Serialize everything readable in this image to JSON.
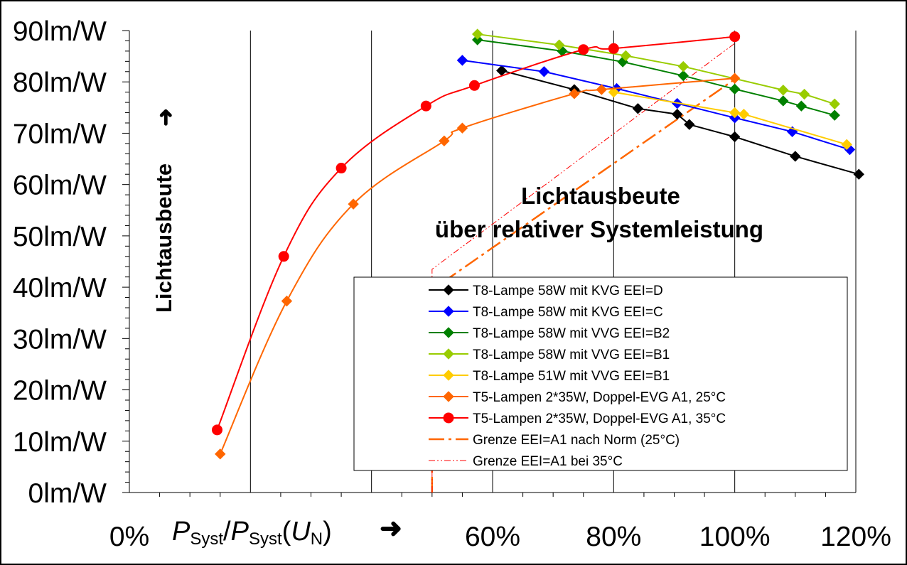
{
  "chart_data": {
    "type": "line",
    "title": "Lichtausbeute",
    "subtitle": "über relativer Systemleistung",
    "ylabel": "Lichtausbeute",
    "ylabel_arrow": "➜",
    "xlabel_parts": {
      "p1": "P",
      "s1": "Syst",
      "slash": "/",
      "p2": "P",
      "s2": "Syst",
      "open": "(",
      "u": "U",
      "n": "N",
      "close": ")"
    },
    "xlabel_arrow": "➜",
    "xlim": [
      0,
      120
    ],
    "ylim": [
      0,
      90
    ],
    "x_ticks": [
      {
        "v": 0,
        "label": "0%"
      },
      {
        "v": 60,
        "label": "60%"
      },
      {
        "v": 80,
        "label": "80%"
      },
      {
        "v": 100,
        "label": "100%"
      },
      {
        "v": 120,
        "label": "120%"
      }
    ],
    "y_ticks": [
      {
        "v": 0,
        "label": "0lm/W"
      },
      {
        "v": 10,
        "label": "10lm/W"
      },
      {
        "v": 20,
        "label": "20lm/W"
      },
      {
        "v": 30,
        "label": "30lm/W"
      },
      {
        "v": 40,
        "label": "40lm/W"
      },
      {
        "v": 50,
        "label": "50lm/W"
      },
      {
        "v": 60,
        "label": "60lm/W"
      },
      {
        "v": 70,
        "label": "70lm/W"
      },
      {
        "v": 80,
        "label": "80lm/W"
      },
      {
        "v": 90,
        "label": "90lm/W"
      }
    ],
    "grid": "vertical",
    "legend_position": "bottom-right",
    "series": [
      {
        "name": "T8-Lampe 58W mit KVG EEI=D",
        "color": "#000000",
        "marker": "diamond",
        "smooth": false,
        "x": [
          61.5,
          73.5,
          84,
          90.5,
          92.5,
          100,
          110,
          120.5
        ],
        "y": [
          82.2,
          78.5,
          74.8,
          73.7,
          71.7,
          69.3,
          65.5,
          62
        ]
      },
      {
        "name": "T8-Lampe 58W mit KVG EEI=C",
        "color": "#0000ff",
        "marker": "diamond",
        "smooth": false,
        "x": [
          55,
          68.5,
          80.5,
          90.5,
          100,
          109.5,
          119
        ],
        "y": [
          84.2,
          82,
          78.7,
          75.8,
          73,
          70.3,
          66.8
        ]
      },
      {
        "name": "T8-Lampe 58W mit VVG EEI=B2",
        "color": "#008000",
        "marker": "diamond",
        "smooth": false,
        "x": [
          57.5,
          71.5,
          81.5,
          91.5,
          100,
          108,
          111,
          116.5
        ],
        "y": [
          88.2,
          86,
          83.9,
          81.2,
          78.6,
          76.3,
          75.3,
          73.5
        ]
      },
      {
        "name": "T8-Lampe 58W mit VVG EEI=B1",
        "color": "#99cc00",
        "marker": "diamond",
        "smooth": false,
        "x": [
          57.5,
          71,
          82,
          91.5,
          108,
          111.5,
          116.5
        ],
        "y": [
          89.3,
          87.2,
          85.1,
          83,
          78.4,
          77.6,
          75.7
        ]
      },
      {
        "name": "T8-Lampe 51W mit VVG EEI=B1",
        "color": "#ffcc00",
        "marker": "diamond",
        "smooth": false,
        "x": [
          80,
          100,
          101.5,
          118.5
        ],
        "y": [
          78,
          74,
          73.7,
          67.8
        ]
      },
      {
        "name": "T5-Lampen 2*35W, Doppel-EVG A1, 25°C",
        "color": "#ff6600",
        "marker": "diamond",
        "smooth": true,
        "x": [
          15,
          26,
          37,
          52,
          55,
          73.5,
          78,
          100
        ],
        "y": [
          7.5,
          37.3,
          56.2,
          68.5,
          71,
          77.7,
          78.5,
          80.7
        ]
      },
      {
        "name": "T5-Lampen 2*35W, Doppel-EVG A1, 35°C",
        "color": "#ff0000",
        "marker": "circle",
        "smooth": true,
        "x": [
          14.5,
          25.5,
          35,
          49,
          57,
          75,
          80,
          100
        ],
        "y": [
          12.2,
          46,
          63.2,
          75.3,
          79.3,
          86.3,
          86.5,
          88.8
        ]
      },
      {
        "name": "Grenze EEI=A1 nach Norm (25°C)",
        "color": "#ff6600",
        "marker": "none",
        "dash": "22,6,4,6",
        "width": 2.5,
        "x": [
          50,
          50,
          100
        ],
        "y": [
          0,
          39.5,
          80.5
        ]
      },
      {
        "name": "Grenze EEI=A1 bei 35°C",
        "color": "#ff0000",
        "marker": "none",
        "dash": "9,3,2,3,2,3",
        "width": 1,
        "x": [
          50,
          50,
          100
        ],
        "y": [
          0,
          43.5,
          87.5
        ]
      }
    ]
  }
}
